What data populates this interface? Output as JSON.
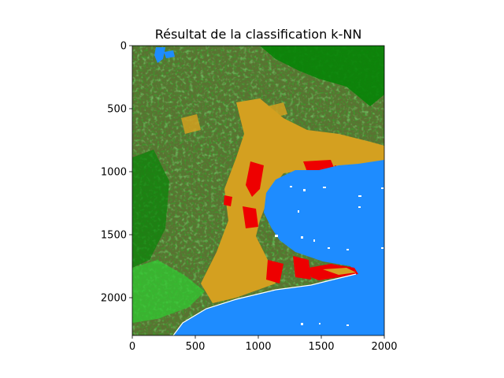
{
  "chart_data": {
    "type": "heatmap",
    "title": "Résultat de la classification k-NN",
    "xlabel": "",
    "ylabel": "",
    "xlim": [
      0,
      2000
    ],
    "ylim": [
      2300,
      0
    ],
    "x_ticks": [
      0,
      500,
      1000,
      1500,
      2000
    ],
    "y_ticks": [
      0,
      500,
      1000,
      1500,
      2000
    ],
    "x_tick_labels": [
      "0",
      "500",
      "1000",
      "1500",
      "2000"
    ],
    "y_tick_labels": [
      "0",
      "500",
      "1000",
      "1500",
      "2000"
    ],
    "grid": false,
    "legend": "none",
    "colors": {
      "forest": "#078407",
      "scrubland": "#5a7232",
      "grassland": "#32c832",
      "agriculture": "#d4a020",
      "urban": "#ee0000",
      "water": "#1e8cff",
      "background": "#ffffff"
    }
  }
}
